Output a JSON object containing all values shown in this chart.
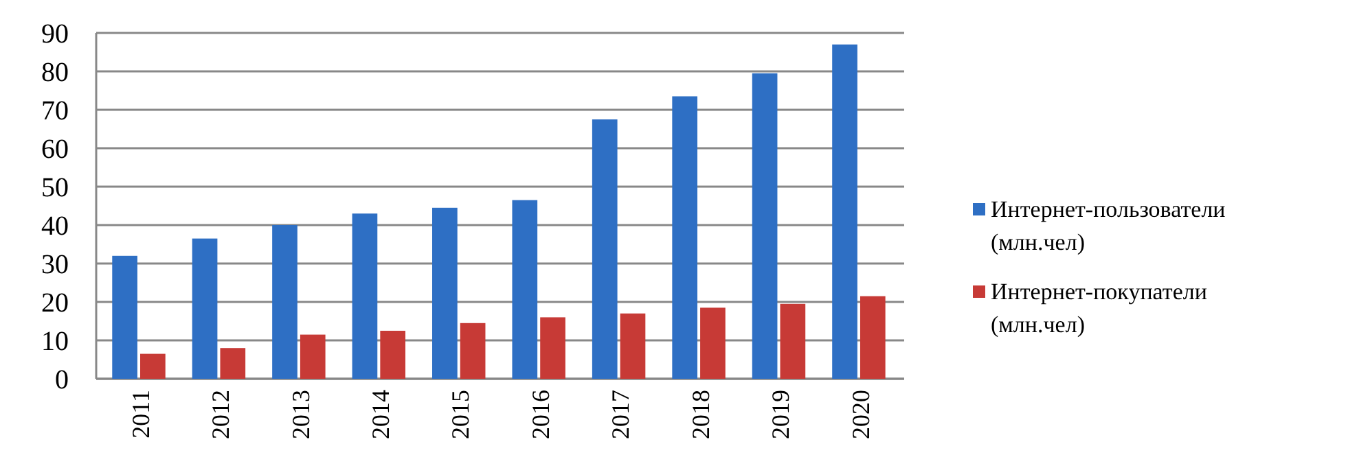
{
  "chart_data": {
    "type": "bar",
    "categories": [
      "2011",
      "2012",
      "2013",
      "2014",
      "2015",
      "2016",
      "2017",
      "2018",
      "2019",
      "2020"
    ],
    "series": [
      {
        "name": "Интернет-пользователи (млн.чел)",
        "color": "#2e6fc4",
        "values": [
          32,
          36.5,
          40,
          43,
          44.5,
          46.5,
          67.5,
          73.5,
          79.5,
          87
        ]
      },
      {
        "name": "Интернет-покупатели (млн.чел)",
        "color": "#c73a36",
        "values": [
          6.5,
          8,
          11.5,
          12.5,
          14.5,
          16,
          17,
          18.5,
          19.5,
          21.5
        ]
      }
    ],
    "ylim": [
      0,
      90
    ],
    "yticks": [
      0,
      10,
      20,
      30,
      40,
      50,
      60,
      70,
      80,
      90
    ],
    "grid": "y",
    "legend": "right"
  }
}
